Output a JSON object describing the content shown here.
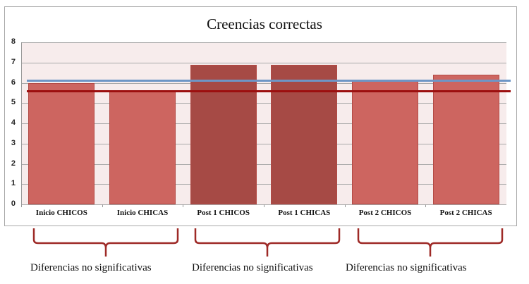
{
  "chart_data": {
    "type": "bar",
    "title": "Creencias correctas",
    "categories": [
      "Inicio  CHICOS",
      "Inicio CHICAS",
      "Post 1 CHICOS",
      "Post 1 CHICAS",
      "Post 2 CHICOS",
      "Post 2 CHICAS"
    ],
    "values": [
      6.0,
      5.6,
      6.9,
      6.9,
      6.1,
      6.4
    ],
    "bar_colors": [
      "#cd6560",
      "#cd6560",
      "#a64a45",
      "#a64a45",
      "#cd6560",
      "#cd6560"
    ],
    "reference_lines": [
      {
        "name": "blue-line",
        "value": 6.1,
        "color": "#6d96c6"
      },
      {
        "name": "red-line",
        "value": 5.6,
        "color": "#9c0f0f"
      }
    ],
    "xlabel": "",
    "ylabel": "",
    "ylim": [
      0,
      8
    ],
    "yticks": [
      0,
      1,
      2,
      3,
      4,
      5,
      6,
      7,
      8
    ],
    "grid": true,
    "legend": "none",
    "annotations": [
      {
        "text": "Diferencias no significativas",
        "groups": [
          "Inicio  CHICOS",
          "Inicio CHICAS"
        ]
      },
      {
        "text": "Diferencias no significativas",
        "groups": [
          "Post 1 CHICOS",
          "Post 1 CHICAS"
        ]
      },
      {
        "text": "Diferencias no significativas",
        "groups": [
          "Post 2 CHICOS",
          "Post 2 CHICAS"
        ]
      }
    ]
  },
  "labels": {
    "title": "Creencias correctas",
    "yticks": [
      "0",
      "1",
      "2",
      "3",
      "4",
      "5",
      "6",
      "7",
      "8"
    ],
    "categories": [
      "Inicio  CHICOS",
      "Inicio CHICAS",
      "Post 1 CHICOS",
      "Post 1 CHICAS",
      "Post 2 CHICOS",
      "Post 2 CHICAS"
    ],
    "notes": [
      "Diferencias no significativas",
      "Diferencias no significativas",
      "Diferencias no significativas"
    ]
  }
}
